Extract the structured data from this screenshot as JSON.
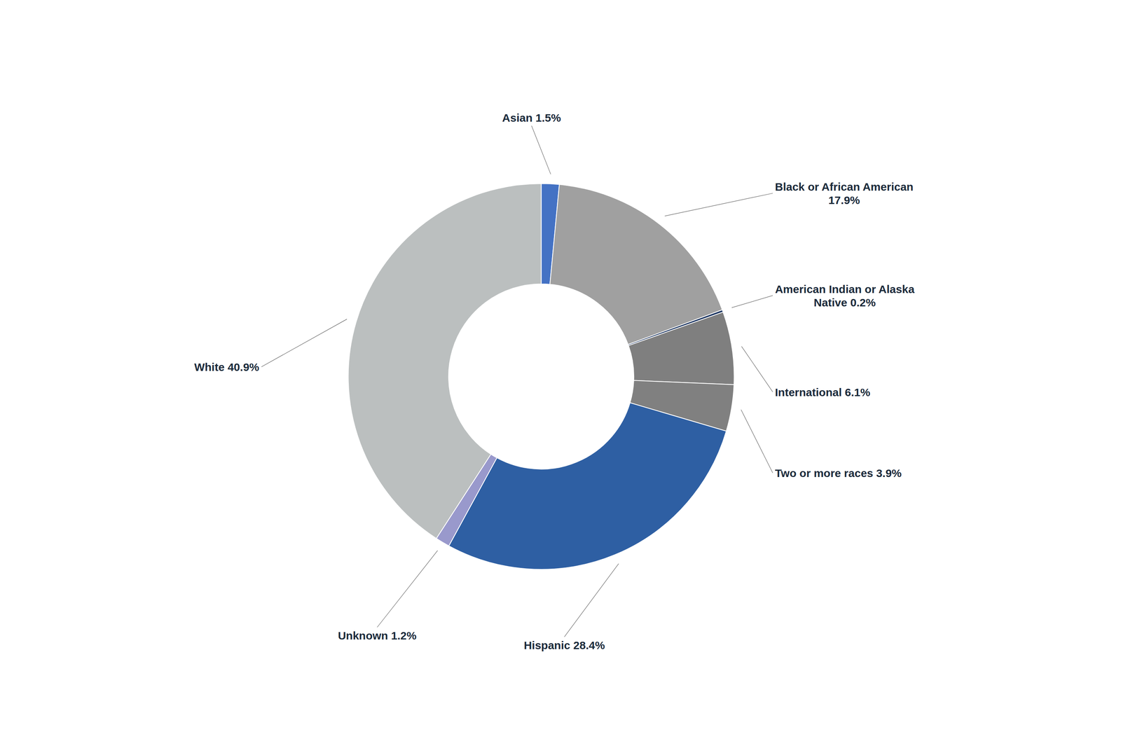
{
  "chart_data": {
    "type": "pie",
    "categories": [
      "Asian 1.5%",
      "Black or African American\n17.9%",
      "American Indian or Alaska\nNative 0.2%",
      "International 6.1%",
      "Two or more races 3.9%",
      "Hispanic 28.4%",
      "Unknown 1.2%",
      "White 40.9%"
    ],
    "values": [
      1.5,
      17.9,
      0.2,
      6.1,
      3.9,
      28.4,
      1.2,
      40.9
    ],
    "colors": [
      "#4472C4",
      "#A0A0A0",
      "#1F3864",
      "#7F7F7F",
      "#808080",
      "#2E5FA3",
      "#9999CC",
      "#BBBFBF"
    ]
  }
}
